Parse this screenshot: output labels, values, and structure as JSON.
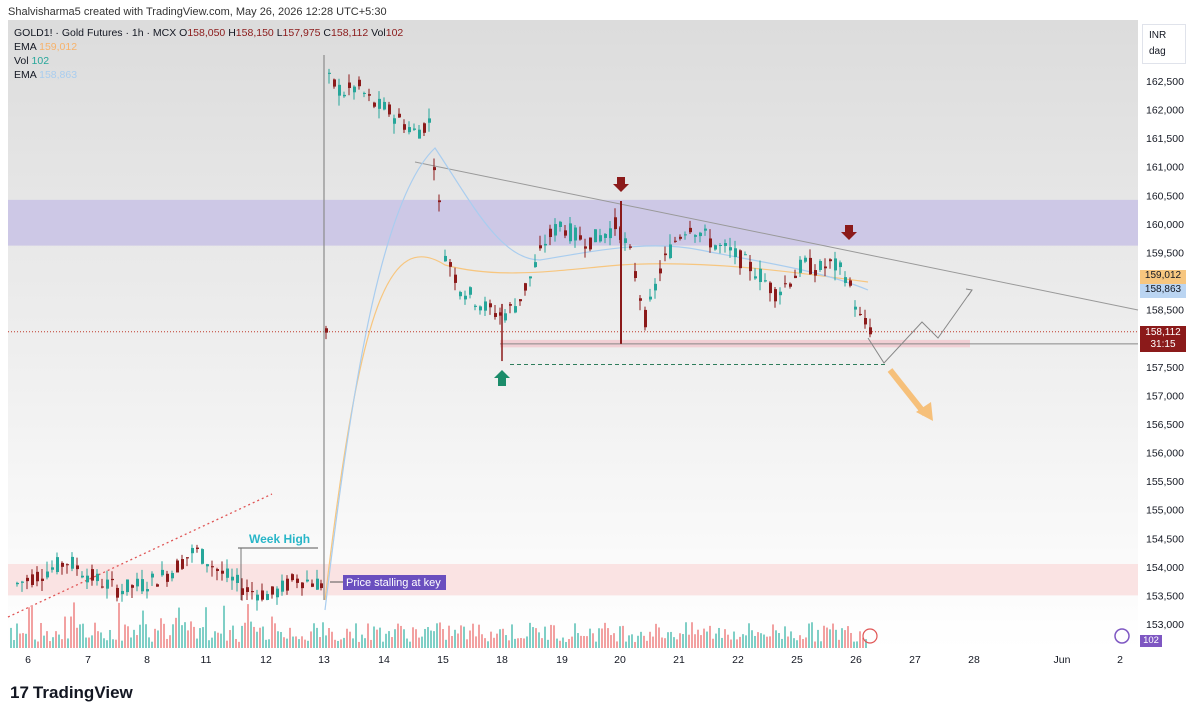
{
  "credit": "Shalvisharma5 created with TradingView.com, May 26, 2026 12:28 UTC+5:30",
  "legend": {
    "symbol_line": "GOLD1! · Gold Futures · 1h · MCX",
    "ohlc": {
      "o_label": "O",
      "o": "158,050",
      "h_label": "H",
      "h": "158,150",
      "l_label": "L",
      "l": "157,975",
      "c_label": "C",
      "c": "158,112",
      "vol_label": "Vol",
      "vol": "102"
    },
    "rows": [
      {
        "label": "EMA",
        "value": "159,012",
        "color": "#f7b26a"
      },
      {
        "label": "Vol",
        "value": "102",
        "color": "#26a69a"
      },
      {
        "label": "EMA",
        "value": "158,863",
        "color": "#a9cdef"
      }
    ]
  },
  "currency_box": {
    "currency": "INR",
    "unit": "dag"
  },
  "price_tags": {
    "ema_slow": {
      "value": "159,012",
      "bg": "#f7c67f",
      "fg": "#131722"
    },
    "ema_fast": {
      "value": "158,863",
      "bg": "#bbd5f2",
      "fg": "#131722"
    },
    "last": {
      "value": "158,112",
      "countdown": "31:15",
      "bg": "#8b1a1a",
      "fg": "#ffffff"
    },
    "vol": {
      "value": "102",
      "bg": "#7e57c2"
    }
  },
  "annotations": {
    "week_high": "Week High",
    "stalling": "Price stalling at key"
  },
  "brand": "TradingView",
  "colors": {
    "up": "#26a69a",
    "down": "#8b1a1a",
    "resistance_zone": "#c9c3e6",
    "support_zone": "#f8dada",
    "arrow_target": "#f6c07a"
  },
  "chart_data": {
    "type": "candlestick",
    "y_ticks": [
      "162,500",
      "162,000",
      "161,500",
      "161,000",
      "160,500",
      "160,000",
      "159,500",
      "159,000",
      "158,500",
      "158,000",
      "157,500",
      "157,000",
      "156,500",
      "156,000",
      "155,500",
      "155,000",
      "154,500",
      "154,000",
      "153,500",
      "153,000"
    ],
    "ylim": [
      152850,
      163000
    ],
    "x_ticks": [
      "6",
      "7",
      "8",
      "11",
      "12",
      "13",
      "14",
      "15",
      "18",
      "19",
      "20",
      "21",
      "22",
      "25",
      "26",
      "27",
      "28",
      "Jun",
      "2"
    ],
    "zones": [
      {
        "name": "resistance-zone",
        "from": 159620,
        "to": 160420
      },
      {
        "name": "support-zone",
        "from": 157840,
        "to": 157970
      },
      {
        "name": "lower-key-zone",
        "from": 153500,
        "to": 154050
      }
    ],
    "levels": {
      "low_support": 157540,
      "last_close": 158112
    },
    "close_path_values": [
      153700,
      153900,
      154100,
      153800,
      153600,
      153700,
      153900,
      154300,
      153900,
      153600,
      153500,
      153800,
      153700,
      162500,
      162300,
      162400,
      162100,
      162000,
      161800,
      161600,
      161800,
      159500,
      158900,
      158700,
      158500,
      158400,
      158600,
      159100,
      159700,
      160000,
      159800,
      159700,
      159800,
      160000,
      159400,
      158300,
      159200,
      159700,
      160000,
      159800,
      159600,
      159500,
      159300,
      159100,
      158800,
      159000,
      159300,
      159200,
      159300,
      159100,
      158300,
      158100
    ]
  }
}
